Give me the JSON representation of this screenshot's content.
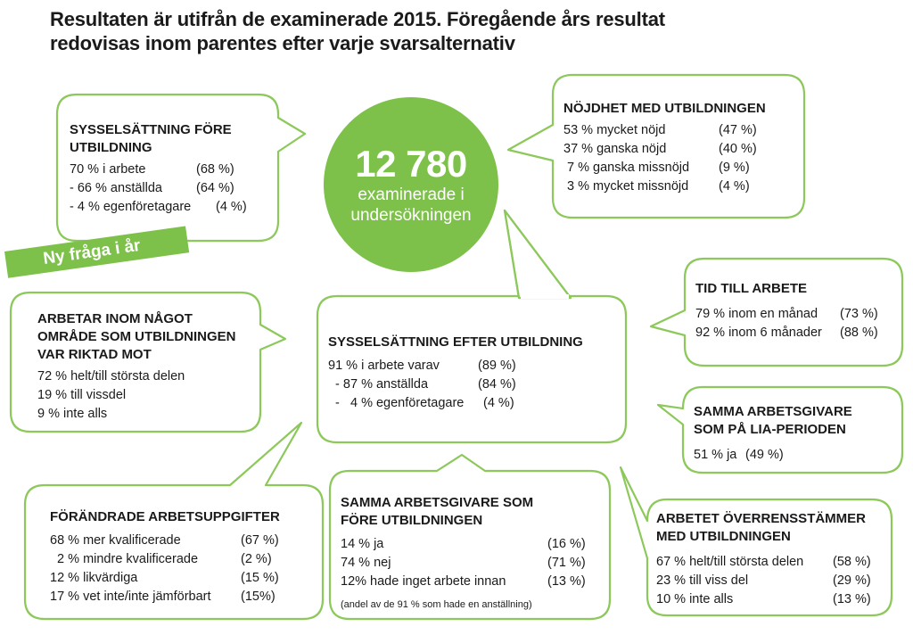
{
  "title": [
    "Resultaten är utifrån de examinerade 2015. Föregående års resultat",
    "redovisas inom parentes efter varje svarsalternativ"
  ],
  "accent_color": "#7dc14a",
  "center": {
    "number": "12 780",
    "line1": "examinerade i",
    "line2": "undersökningen"
  },
  "tag": "Ny fråga i år",
  "before": {
    "heading": [
      "SYSSELSÄTTNING FÖRE",
      "UTBILDNING"
    ],
    "rows": [
      [
        "70 % i arbete",
        "(68 %)"
      ],
      [
        "- 66 % anställda",
        "(64 %)"
      ],
      [
        "- 4 % egenföretagare",
        "(4 %)"
      ]
    ]
  },
  "satisfaction": {
    "heading": "NÖJDHET MED UTBILDNINGEN",
    "rows": [
      [
        "53 % mycket nöjd",
        "(47 %)"
      ],
      [
        "37 % ganska nöjd",
        "(40 %)"
      ],
      [
        " 7 % ganska missnöjd",
        "(9 %)"
      ],
      [
        " 3 % mycket missnöjd",
        "(4 %)"
      ]
    ]
  },
  "time": {
    "heading": "TID TILL ARBETE",
    "rows": [
      [
        "79 % inom en månad",
        "(73 %)"
      ],
      [
        "92 % inom 6 månader",
        "(88 %)"
      ]
    ]
  },
  "area": {
    "heading": [
      "ARBETAR INOM NÅGOT",
      "OMRÅDE SOM UTBILDNINGEN",
      "VAR RIKTAD MOT"
    ],
    "rows": [
      "72 % helt/till största delen",
      "19 % till vissdel",
      "9 % inte alls"
    ]
  },
  "after": {
    "heading": "SYSSELSÄTTNING EFTER UTBILDNING",
    "rows": [
      [
        "91 % i arbete varav",
        "(89 %)"
      ],
      [
        "  - 87 % anställda",
        "(84 %)"
      ],
      [
        "  -   4 % egenföretagare",
        "(4 %)"
      ]
    ]
  },
  "lia": {
    "heading": [
      "SAMMA ARBETSGIVARE",
      "SOM PÅ LIA-PERIODEN"
    ],
    "rows": [
      [
        "51 % ja",
        "(49 %)"
      ]
    ]
  },
  "tasks": {
    "heading": "FÖRÄNDRADE ARBETSUPPGIFTER",
    "rows": [
      [
        "68 % mer kvalificerade",
        "(67 %)"
      ],
      [
        "  2 % mindre kvalificerade",
        "(2 %)"
      ],
      [
        "12 % likvärdiga",
        "(15 %)"
      ],
      [
        "17 % vet inte/inte jämförbart",
        "(15%)"
      ]
    ]
  },
  "same_employer": {
    "heading": [
      "SAMMA ARBETSGIVARE SOM",
      "FÖRE UTBILDNINGEN"
    ],
    "rows": [
      [
        "14 % ja",
        "(16 %)"
      ],
      [
        "74 % nej",
        "(71 %)"
      ],
      [
        "12% hade inget arbete innan",
        "(13 %)"
      ]
    ],
    "note": "(andel av de 91 % som hade en anställning)"
  },
  "match": {
    "heading": [
      "ARBETET ÖVERRENSSTÄMMER",
      "MED UTBILDNINGEN"
    ],
    "rows": [
      [
        "67 % helt/till största delen",
        "(58 %)"
      ],
      [
        "23 % till viss del",
        "(29 %)"
      ],
      [
        "10 % inte alls",
        "(13 %)"
      ]
    ]
  }
}
